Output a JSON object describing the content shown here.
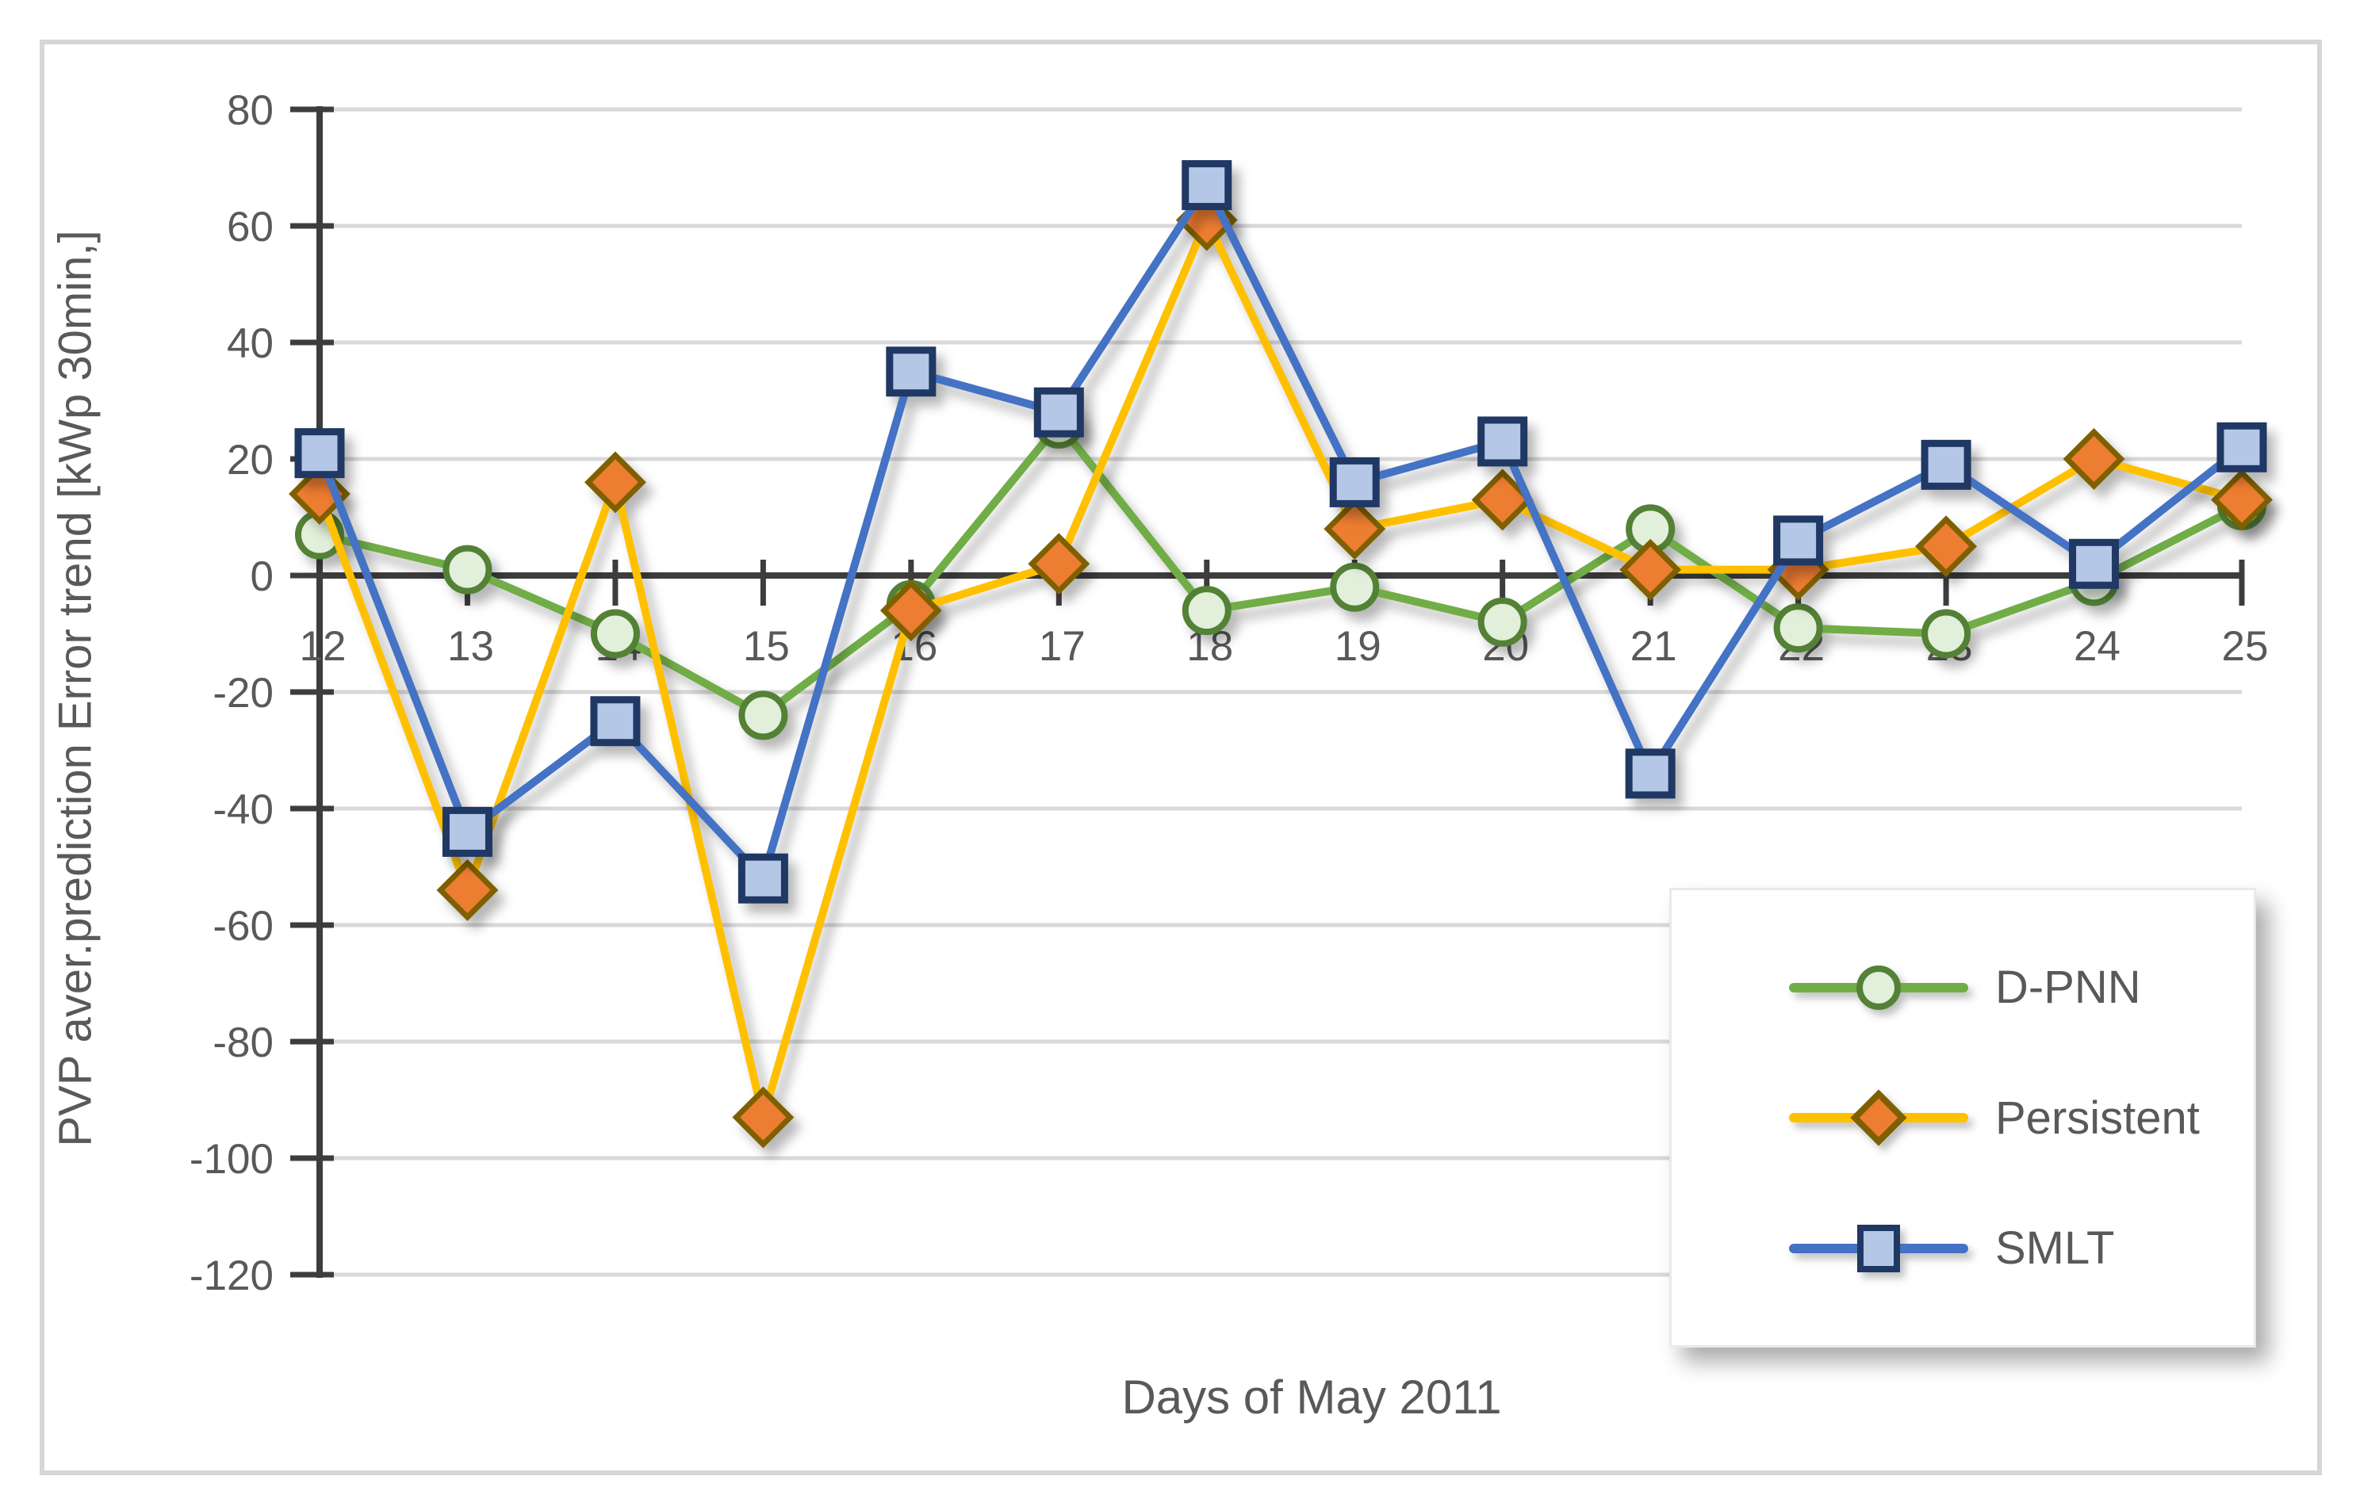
{
  "chart_data": {
    "type": "line",
    "title": "",
    "xlabel": "Days of May 2011",
    "ylabel": "PVP aver.prediction Error trend [kWp 30min,]",
    "categories": [
      12,
      13,
      14,
      15,
      16,
      17,
      18,
      19,
      20,
      21,
      22,
      23,
      24,
      25
    ],
    "y_ticks": [
      80,
      60,
      40,
      20,
      0,
      -20,
      -40,
      -60,
      -80,
      -100,
      -120
    ],
    "ylim": [
      -120,
      80
    ],
    "grid": "horizontal",
    "legend_position": "overlay-bottom-right",
    "series": [
      {
        "name": "D-PNN",
        "marker": "circle",
        "line_color": "#70AD47",
        "marker_fill": "#E2EFDA",
        "marker_stroke": "#538135",
        "values": [
          7,
          1,
          -10,
          -24,
          -5,
          26,
          -6,
          -2,
          -8,
          8,
          -9,
          -10,
          -1,
          12
        ]
      },
      {
        "name": "Persistent",
        "marker": "diamond",
        "line_color": "#FFC000",
        "marker_fill": "#ED7D31",
        "marker_stroke": "#7F6000",
        "values": [
          14,
          -54,
          16,
          -93,
          -6,
          2,
          61,
          8,
          13,
          1,
          1,
          5,
          20,
          13
        ]
      },
      {
        "name": "SMLT",
        "marker": "square",
        "line_color": "#4472C4",
        "marker_fill": "#B4C7E7",
        "marker_stroke": "#1F3864",
        "values": [
          21,
          -44,
          -25,
          -52,
          35,
          28,
          67,
          16,
          23,
          -34,
          6,
          19,
          2,
          22
        ]
      }
    ]
  },
  "colors": {
    "axis": "#3D3D3D",
    "gridline": "#D9D9D9",
    "tick_label": "#595959",
    "frame_border": "#D6D6D6",
    "background": "#FFFFFF"
  }
}
